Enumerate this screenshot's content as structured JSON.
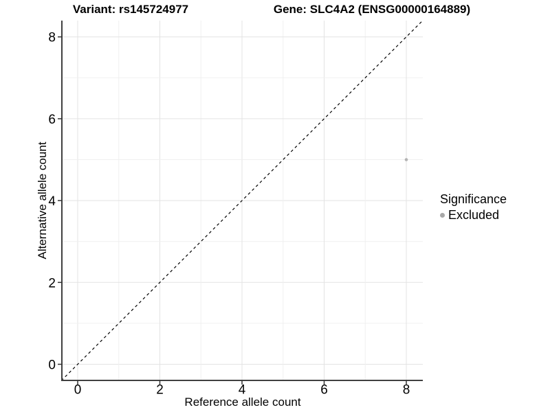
{
  "chart_data": {
    "type": "scatter",
    "title_left": "Variant: rs145724977",
    "title_right": "Gene: SLC4A2 (ENSG00000164889)",
    "xlabel": "Reference allele count",
    "ylabel": "Alternative allele count",
    "xlim": [
      -0.4,
      8.4
    ],
    "ylim": [
      -0.4,
      8.4
    ],
    "xticks": [
      0,
      2,
      4,
      6,
      8
    ],
    "yticks": [
      0,
      2,
      4,
      6,
      8
    ],
    "grid": {
      "on": true,
      "spacing": 1,
      "major_every": 2,
      "major_color": "#e3e3e3",
      "minor_color": "#f0f0f0"
    },
    "reference_line": {
      "kind": "identity y=x",
      "from": [
        -0.4,
        -0.4
      ],
      "to": [
        8.4,
        8.4
      ],
      "style": "dashed",
      "color": "#000000"
    },
    "series": [
      {
        "name": "Excluded",
        "color": "#b3b3b3",
        "point_radius": 2.3,
        "points": [
          [
            8,
            5
          ]
        ]
      }
    ],
    "legend": {
      "title": "Significance",
      "position": "right",
      "items": [
        {
          "label": "Excluded",
          "color": "#a8a8a8"
        }
      ]
    }
  },
  "colors": {
    "background": "#ffffff",
    "axis_line": "#404040",
    "tick_mark": "#333333",
    "text": "#000000"
  }
}
